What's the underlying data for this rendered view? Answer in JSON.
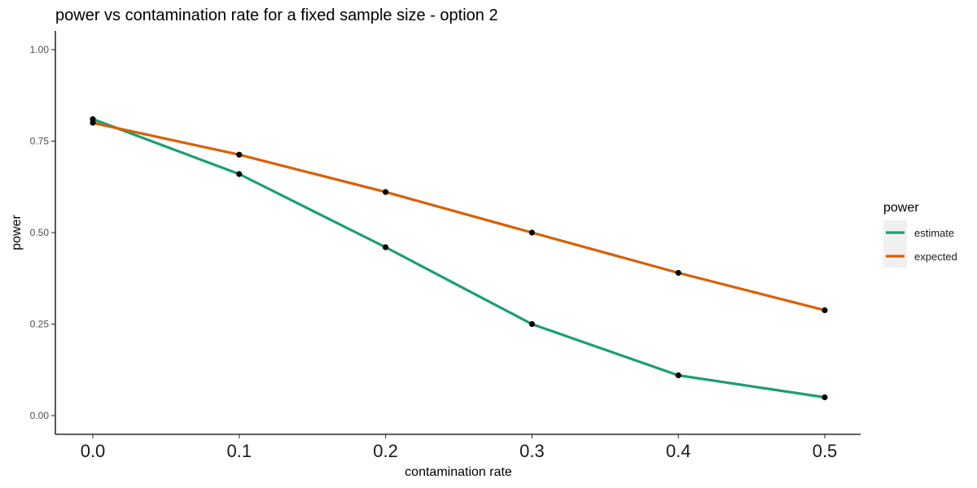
{
  "chart_data": {
    "type": "line",
    "title": "power vs contamination rate for a fixed sample size - option 2",
    "xlabel": "contamination rate",
    "ylabel": "power",
    "x": [
      0.0,
      0.1,
      0.2,
      0.3,
      0.4,
      0.5
    ],
    "xticks": [
      "0.0",
      "0.1",
      "0.2",
      "0.3",
      "0.4",
      "0.5"
    ],
    "yticks": [
      "0.00",
      "0.25",
      "0.50",
      "0.75",
      "1.00"
    ],
    "xlim": [
      0.0,
      0.5
    ],
    "ylim": [
      0.0,
      1.0
    ],
    "grid": false,
    "legend": {
      "title": "power",
      "placement": "right"
    },
    "series": [
      {
        "name": "estimate",
        "color": "#1b9e77",
        "values": [
          0.81,
          0.66,
          0.46,
          0.25,
          0.11,
          0.05
        ]
      },
      {
        "name": "expected",
        "color": "#d95f02",
        "values": [
          0.8,
          0.713,
          0.611,
          0.5,
          0.39,
          0.288
        ]
      }
    ],
    "point_color": "#000000"
  }
}
